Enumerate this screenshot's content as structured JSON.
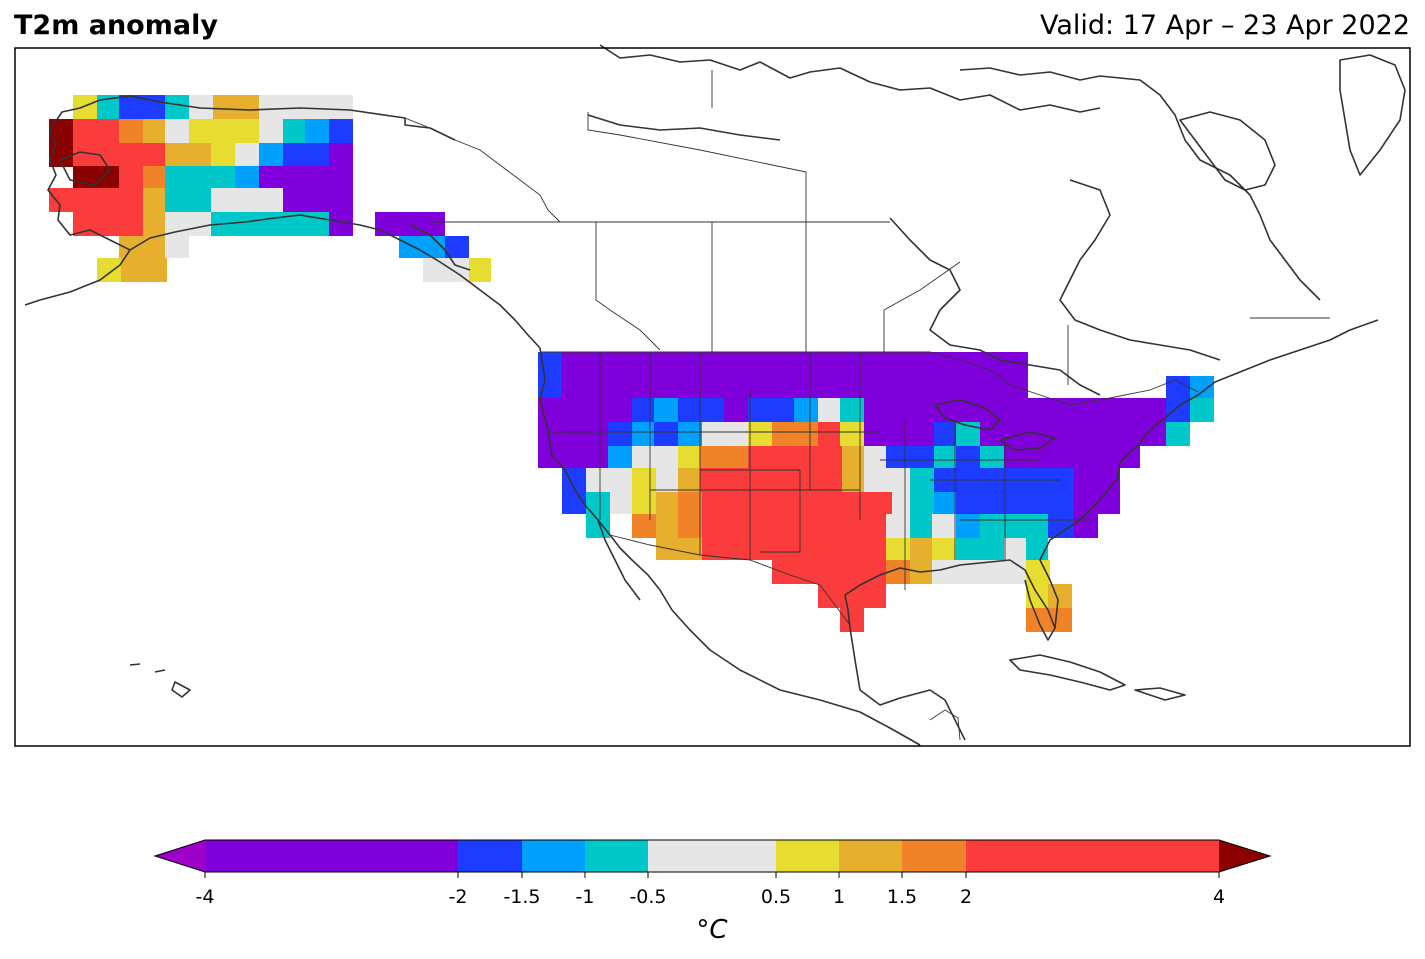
{
  "header": {
    "title": "T2m anomaly",
    "valid": "Valid: 17 Apr – 23 Apr 2022"
  },
  "colorbar": {
    "ticks": [
      "-4",
      "-2",
      "-1.5",
      "-1",
      "-0.5",
      "0.5",
      "1",
      "1.5",
      "2",
      "4"
    ],
    "unit_label": "°C",
    "under_color": "#9D00C8",
    "over_color": "#8B0000",
    "bins": [
      {
        "from": -4,
        "to": -2,
        "color": "#8000DC"
      },
      {
        "from": -2,
        "to": -1.5,
        "color": "#1E3CFF"
      },
      {
        "from": -1.5,
        "to": -1,
        "color": "#00A0FF"
      },
      {
        "from": -1,
        "to": -0.5,
        "color": "#00C8C8"
      },
      {
        "from": -0.5,
        "to": 0.5,
        "color": "#E6E6E6"
      },
      {
        "from": 0.5,
        "to": 1,
        "color": "#E6DC32"
      },
      {
        "from": 1,
        "to": 1.5,
        "color": "#E6AF2D"
      },
      {
        "from": 1.5,
        "to": 2,
        "color": "#F08228"
      },
      {
        "from": 2,
        "to": 4,
        "color": "#FA3C3C"
      }
    ]
  },
  "map": {
    "land_outline_color": "#333333",
    "grid_rows": [
      {
        "region": "alaska",
        "rows": [
          "yTBBT.OO....",
          "XRMOgyyg.TAB",
          "XRRROOTTgABP",
          "XXMTTTAPPPP",
          "RRRTTTggPPPP",
          "RRRO.gTTTTP"
        ]
      },
      {
        "region": "conus",
        "rows": [
          "PPPPPPPPPPPPPPPPPPPP",
          "BPPPPPPPPPPPPPPPPPPPPP",
          "PPPPBABBPBBAgTPPPPPPPPPPPP",
          "PPPBABA..yOOR.PPPPPPPAPPPPPP"
        ]
      }
    ]
  }
}
